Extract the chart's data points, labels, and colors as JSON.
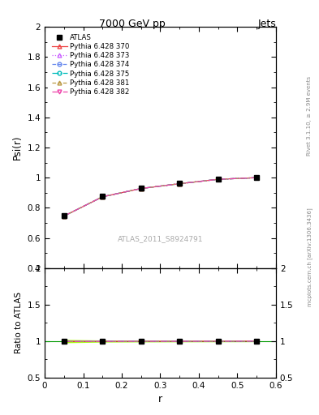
{
  "title_left": "7000 GeV pp",
  "title_right": "Jets",
  "ylabel_main": "Psi(r)",
  "ylabel_ratio": "Ratio to ATLAS",
  "xlabel": "r",
  "watermark": "ATLAS_2011_S8924791",
  "right_label_top": "Rivet 3.1.10, ≥ 2.9M events",
  "right_label_bottom": "mcplots.cern.ch [arXiv:1306.3436]",
  "x_data": [
    0.05,
    0.15,
    0.25,
    0.35,
    0.45,
    0.55
  ],
  "atlas_y": [
    0.748,
    0.876,
    0.93,
    0.962,
    0.99,
    1.0
  ],
  "pythia_370_y": [
    0.745,
    0.873,
    0.928,
    0.96,
    0.989,
    1.0
  ],
  "pythia_373_y": [
    0.745,
    0.873,
    0.928,
    0.96,
    0.989,
    1.0
  ],
  "pythia_374_y": [
    0.745,
    0.873,
    0.928,
    0.96,
    0.989,
    1.0
  ],
  "pythia_375_y": [
    0.745,
    0.873,
    0.928,
    0.96,
    0.989,
    1.0
  ],
  "pythia_381_y": [
    0.745,
    0.873,
    0.928,
    0.96,
    0.989,
    1.0
  ],
  "pythia_382_y": [
    0.745,
    0.873,
    0.928,
    0.96,
    0.989,
    1.0
  ],
  "ylim_main": [
    0.4,
    2.0
  ],
  "ylim_ratio": [
    0.5,
    2.0
  ],
  "xlim": [
    0.0,
    0.6
  ],
  "series": [
    {
      "label": "Pythia 6.428 370",
      "color": "#ee4444",
      "linestyle": "-",
      "marker": "^",
      "mfc": "none"
    },
    {
      "label": "Pythia 6.428 373",
      "color": "#cc66ff",
      "linestyle": ":",
      "marker": "^",
      "mfc": "none"
    },
    {
      "label": "Pythia 6.428 374",
      "color": "#6688ee",
      "linestyle": "--",
      "marker": "o",
      "mfc": "none"
    },
    {
      "label": "Pythia 6.428 375",
      "color": "#00bbbb",
      "linestyle": "-.",
      "marker": "o",
      "mfc": "none"
    },
    {
      "label": "Pythia 6.428 381",
      "color": "#bb9944",
      "linestyle": "--",
      "marker": "^",
      "mfc": "none"
    },
    {
      "label": "Pythia 6.428 382",
      "color": "#ee44aa",
      "linestyle": "-.",
      "marker": "v",
      "mfc": "none"
    }
  ],
  "atlas_error_lo": [
    0.012,
    0.006,
    0.004,
    0.003,
    0.002,
    0.001
  ],
  "atlas_error_hi": [
    0.012,
    0.006,
    0.004,
    0.003,
    0.002,
    0.001
  ],
  "ratio_band_color": "#aaff00",
  "background_color": "#ffffff"
}
